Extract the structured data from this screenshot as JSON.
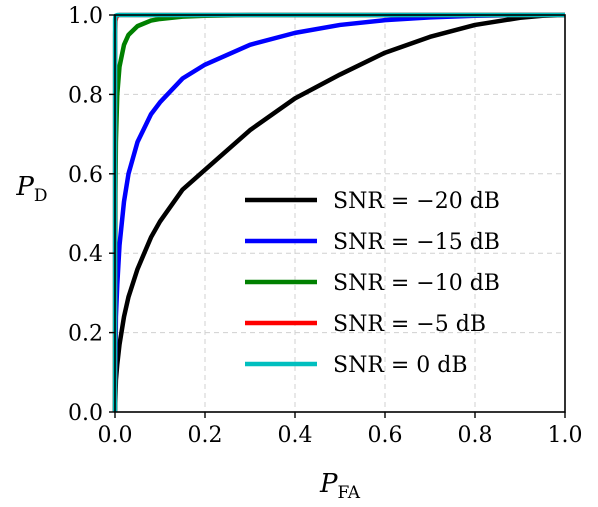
{
  "chart_data": {
    "type": "line",
    "title": "",
    "xlabel": "P",
    "xlabel_sub": "FA",
    "ylabel": "P",
    "ylabel_sub": "D",
    "xlim": [
      0.0,
      1.0
    ],
    "ylim": [
      0.0,
      1.0
    ],
    "xticks": [
      "0.0",
      "0.2",
      "0.4",
      "0.6",
      "0.8",
      "1.0"
    ],
    "yticks": [
      "0.0",
      "0.2",
      "0.4",
      "0.6",
      "0.8",
      "1.0"
    ],
    "grid": true,
    "legend_position": "lower-right",
    "series": [
      {
        "name": "SNR = −20 dB",
        "color": "#000000",
        "x": [
          0,
          0.002,
          0.005,
          0.01,
          0.02,
          0.03,
          0.05,
          0.08,
          0.1,
          0.15,
          0.2,
          0.3,
          0.4,
          0.5,
          0.6,
          0.7,
          0.8,
          0.9,
          0.95,
          1.0
        ],
        "y": [
          0,
          0.08,
          0.12,
          0.17,
          0.24,
          0.29,
          0.36,
          0.44,
          0.48,
          0.56,
          0.61,
          0.71,
          0.79,
          0.85,
          0.905,
          0.945,
          0.975,
          0.993,
          0.998,
          1.0
        ]
      },
      {
        "name": "SNR = −15 dB",
        "color": "#0000ff",
        "x": [
          0,
          0.002,
          0.005,
          0.01,
          0.02,
          0.03,
          0.05,
          0.08,
          0.1,
          0.15,
          0.2,
          0.3,
          0.4,
          0.5,
          0.6,
          0.7,
          0.8,
          0.9,
          1.0
        ],
        "y": [
          0,
          0.24,
          0.32,
          0.42,
          0.53,
          0.6,
          0.68,
          0.75,
          0.78,
          0.84,
          0.875,
          0.925,
          0.955,
          0.975,
          0.987,
          0.994,
          0.998,
          1.0,
          1.0
        ]
      },
      {
        "name": "SNR = −10 dB",
        "color": "#008000",
        "x": [
          0,
          0.001,
          0.002,
          0.005,
          0.01,
          0.02,
          0.03,
          0.05,
          0.08,
          0.1,
          0.15,
          0.2,
          0.3,
          0.5,
          1.0
        ],
        "y": [
          0,
          0.55,
          0.68,
          0.8,
          0.87,
          0.925,
          0.95,
          0.972,
          0.986,
          0.99,
          0.996,
          0.998,
          1.0,
          1.0,
          1.0
        ]
      },
      {
        "name": "SNR = −5 dB",
        "color": "#ff0000",
        "x": [
          0,
          0.0003,
          0.001,
          0.003,
          0.006,
          0.01,
          0.02,
          1.0
        ],
        "y": [
          0,
          0.95,
          0.985,
          0.995,
          0.999,
          1.0,
          1.0,
          1.0
        ]
      },
      {
        "name": "SNR = 0 dB",
        "color": "#00bfbf",
        "x": [
          0,
          0.0002,
          0.001,
          0.005,
          0.01,
          1.0
        ],
        "y": [
          0,
          0.99,
          0.998,
          1.0,
          1.0,
          1.0
        ]
      }
    ]
  }
}
